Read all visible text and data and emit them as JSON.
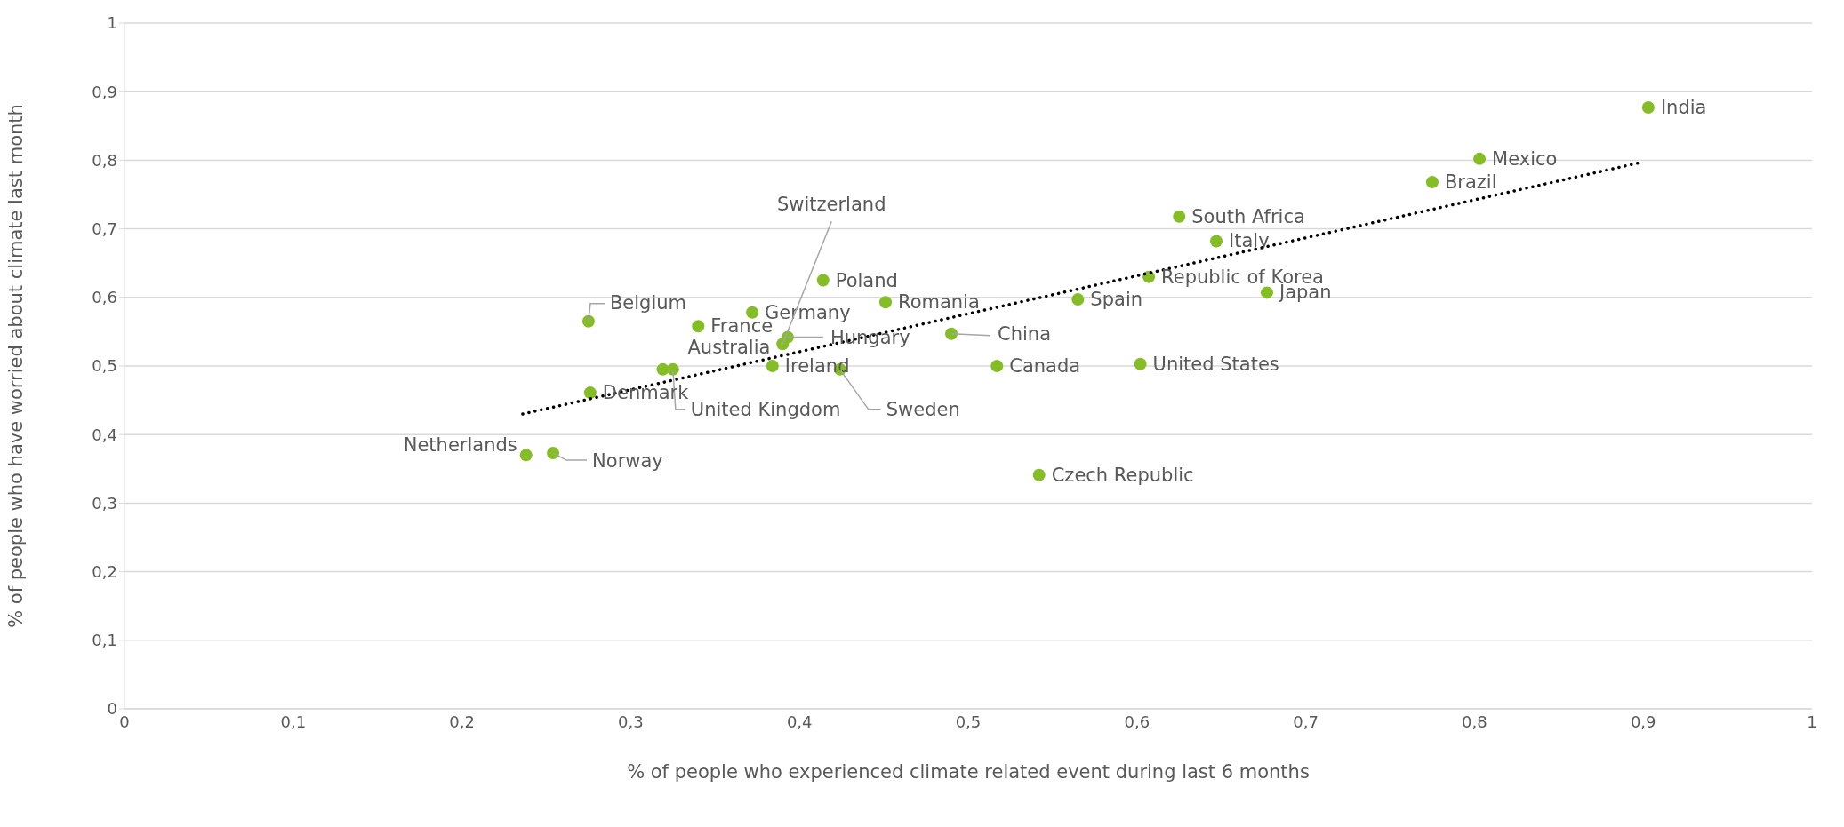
{
  "chart_data": {
    "type": "scatter",
    "xlabel": "% of people who experienced climate related event during last 6 months",
    "ylabel": "% of people who have worried about climate last month",
    "series": [
      {
        "color": "#84bd26",
        "marker": "circle",
        "x": [
          0.903,
          0.803,
          0.775,
          0.625,
          0.647,
          0.607,
          0.677,
          0.565,
          0.602,
          0.517,
          0.49,
          0.542,
          0.451,
          0.414,
          0.372,
          0.34,
          0.275,
          0.393,
          0.39,
          0.384,
          0.424,
          0.319,
          0.325,
          0.276,
          0.238,
          0.254
        ],
        "values": [
          0.877,
          0.802,
          0.768,
          0.718,
          0.682,
          0.63,
          0.607,
          0.597,
          0.503,
          0.5,
          0.547,
          0.341,
          0.593,
          0.625,
          0.578,
          0.558,
          0.565,
          0.542,
          0.532,
          0.5,
          0.495,
          0.495,
          0.495,
          0.461,
          0.37,
          0.373
        ]
      },
      {
        "type": "line",
        "color": "#000000",
        "line_style": "dotted",
        "marker": "none",
        "x": [
          0.236,
          0.899
        ],
        "values": [
          0.43,
          0.797
        ]
      }
    ],
    "annotations": [
      {
        "text": "India",
        "x": 0.903,
        "y": 0.877
      },
      {
        "text": "Mexico",
        "x": 0.803,
        "y": 0.802
      },
      {
        "text": "Brazil",
        "x": 0.775,
        "y": 0.768
      },
      {
        "text": "South Africa",
        "x": 0.625,
        "y": 0.718
      },
      {
        "text": "Italy",
        "x": 0.647,
        "y": 0.682
      },
      {
        "text": "Republic of Korea",
        "x": 0.607,
        "y": 0.63
      },
      {
        "text": "Japan",
        "x": 0.677,
        "y": 0.607
      },
      {
        "text": "Spain",
        "x": 0.565,
        "y": 0.597
      },
      {
        "text": "United States",
        "x": 0.602,
        "y": 0.503
      },
      {
        "text": "Canada",
        "x": 0.517,
        "y": 0.5
      },
      {
        "text": "China",
        "x": 0.49,
        "y": 0.547
      },
      {
        "text": "Czech Republic",
        "x": 0.542,
        "y": 0.341
      },
      {
        "text": "Romania",
        "x": 0.451,
        "y": 0.593
      },
      {
        "text": "Poland",
        "x": 0.414,
        "y": 0.625
      },
      {
        "text": "Germany",
        "x": 0.372,
        "y": 0.578
      },
      {
        "text": "France",
        "x": 0.34,
        "y": 0.558
      },
      {
        "text": "Belgium",
        "x": 0.275,
        "y": 0.565
      },
      {
        "text": "Hungary",
        "x": 0.393,
        "y": 0.542
      },
      {
        "text": "Switzerland",
        "x": 0.39,
        "y": 0.532
      },
      {
        "text": "Ireland",
        "x": 0.384,
        "y": 0.5
      },
      {
        "text": "Sweden",
        "x": 0.424,
        "y": 0.495
      },
      {
        "text": "Australia",
        "x": 0.319,
        "y": 0.495
      },
      {
        "text": "United Kingdom",
        "x": 0.325,
        "y": 0.495
      },
      {
        "text": "Denmark",
        "x": 0.276,
        "y": 0.461
      },
      {
        "text": "Netherlands",
        "x": 0.238,
        "y": 0.37
      },
      {
        "text": "Norway",
        "x": 0.254,
        "y": 0.373
      }
    ],
    "xlim": [
      0,
      1
    ],
    "ylim": [
      0,
      1
    ],
    "xticks": [
      0,
      {
        "value": 0.1,
        "label": "0,1"
      },
      {
        "value": 0.2,
        "label": "0,2"
      },
      {
        "value": 0.3,
        "label": "0,3"
      },
      {
        "value": 0.4,
        "label": "0,4"
      },
      {
        "value": 0.5,
        "label": "0,5"
      },
      {
        "value": 0.6,
        "label": "0,6"
      },
      {
        "value": 0.7,
        "label": "0,7"
      },
      {
        "value": 0.8,
        "label": "0,8"
      },
      {
        "value": 0.9,
        "label": "0,9"
      },
      1
    ],
    "yticks": [
      0,
      {
        "value": 0.1,
        "label": "0,1"
      },
      {
        "value": 0.2,
        "label": "0,2"
      },
      {
        "value": 0.3,
        "label": "0,3"
      },
      {
        "value": 0.4,
        "label": "0,4"
      },
      {
        "value": 0.5,
        "label": "0,5"
      },
      {
        "value": 0.6,
        "label": "0,6"
      },
      {
        "value": 0.7,
        "label": "0,7"
      },
      {
        "value": 0.8,
        "label": "0,8"
      },
      {
        "value": 0.9,
        "label": "0,9"
      },
      1
    ],
    "grid": "y",
    "legend": false
  }
}
